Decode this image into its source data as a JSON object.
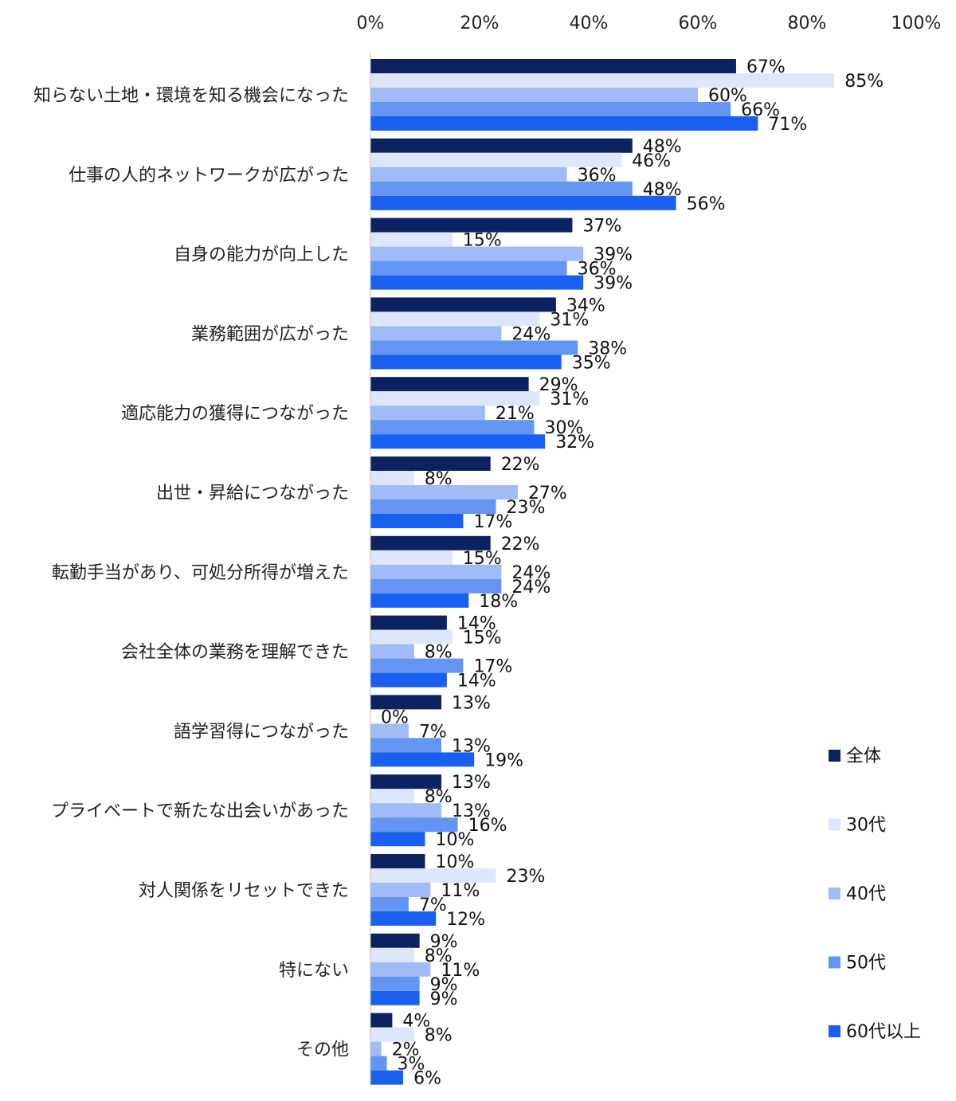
{
  "chart_data": {
    "type": "bar",
    "orientation": "horizontal",
    "xlim": [
      0,
      100
    ],
    "x_ticks": [
      "0%",
      "20%",
      "40%",
      "60%",
      "80%",
      "100%"
    ],
    "grid": false,
    "legend_position": "right",
    "value_suffix": "%",
    "categories": [
      "知らない土地・環境を知る機会になった",
      "仕事の人的ネットワークが広がった",
      "自身の能力が向上した",
      "業務範囲が広がった",
      "適応能力の獲得につながった",
      "出世・昇給につながった",
      "転勤手当があり、可処分所得が増えた",
      "会社全体の業務を理解できた",
      "語学習得につながった",
      "プライベートで新たな出会いがあった",
      "対人関係をリセットできた",
      "特にない",
      "その他"
    ],
    "series": [
      {
        "name": "全体",
        "color": "#0d2260",
        "values": [
          67,
          48,
          37,
          34,
          29,
          22,
          22,
          14,
          13,
          13,
          10,
          9,
          4
        ]
      },
      {
        "name": "30代",
        "color": "#dde6fb",
        "values": [
          85,
          46,
          15,
          31,
          31,
          8,
          15,
          15,
          0,
          8,
          23,
          8,
          8
        ]
      },
      {
        "name": "40代",
        "color": "#9fbcf8",
        "values": [
          60,
          36,
          39,
          24,
          21,
          27,
          24,
          8,
          7,
          13,
          11,
          11,
          2
        ]
      },
      {
        "name": "50代",
        "color": "#6495f3",
        "values": [
          66,
          48,
          36,
          38,
          30,
          23,
          24,
          17,
          13,
          16,
          7,
          9,
          3
        ]
      },
      {
        "name": "60代以上",
        "color": "#1960f0",
        "values": [
          71,
          56,
          39,
          35,
          32,
          17,
          18,
          14,
          19,
          10,
          12,
          9,
          6
        ]
      }
    ]
  }
}
